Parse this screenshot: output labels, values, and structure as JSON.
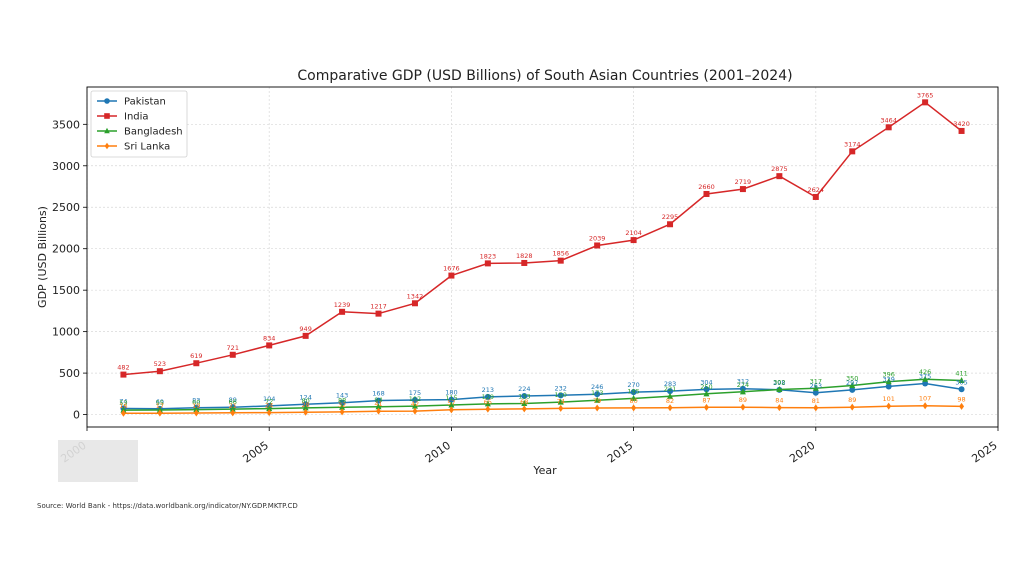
{
  "chart_data": {
    "type": "line",
    "title": "Comparative GDP (USD Billions) of South Asian Countries (2001–2024)",
    "xlabel": "Year",
    "ylabel": "GDP (USD Billions)",
    "xlim": [
      2000,
      2025
    ],
    "ylim": [
      -150,
      3950
    ],
    "xticks": [
      2000,
      2005,
      2010,
      2015,
      2020,
      2025
    ],
    "yticks": [
      0,
      500,
      1000,
      1500,
      2000,
      2500,
      3000,
      3500
    ],
    "grid": true,
    "legend_position": "top-left",
    "x": [
      2001,
      2002,
      2003,
      2004,
      2005,
      2006,
      2007,
      2008,
      2009,
      2010,
      2011,
      2012,
      2013,
      2014,
      2015,
      2016,
      2017,
      2018,
      2019,
      2020,
      2021,
      2022,
      2023,
      2024
    ],
    "series": [
      {
        "name": "Pakistan",
        "color": "#1f77b4",
        "marker": "circle",
        "values": [
          74,
          69,
          83,
          89,
          104,
          124,
          143,
          168,
          175,
          180,
          213,
          224,
          232,
          246,
          270,
          283,
          304,
          312,
          298,
          263,
          297,
          339,
          375,
          305
        ]
      },
      {
        "name": "India",
        "color": "#d62728",
        "marker": "square",
        "values": [
          482,
          523,
          619,
          721,
          834,
          949,
          1239,
          1217,
          1342,
          1676,
          1823,
          1828,
          1856,
          2039,
          2104,
          2295,
          2660,
          2719,
          2875,
          2624,
          3174,
          3464,
          3765,
          3420
        ]
      },
      {
        "name": "Bangladesh",
        "color": "#2ca02c",
        "marker": "triangle",
        "values": [
          53,
          55,
          60,
          66,
          72,
          80,
          88,
          94,
          102,
          115,
          129,
          133,
          150,
          173,
          195,
          221,
          250,
          274,
          302,
          317,
          350,
          396,
          426,
          411
        ]
      },
      {
        "name": "Sri Lanka",
        "color": "#ff7f0e",
        "marker": "diamond",
        "values": [
          16,
          17,
          19,
          21,
          24,
          28,
          32,
          41,
          42,
          57,
          65,
          68,
          74,
          79,
          80,
          82,
          87,
          89,
          84,
          81,
          89,
          101,
          107,
          98
        ]
      }
    ]
  },
  "source": "Source: World Bank - https://data.worldbank.org/indicator/NY.GDP.MKTP.CD",
  "watermark": "PUBLICFINANCE.PK"
}
